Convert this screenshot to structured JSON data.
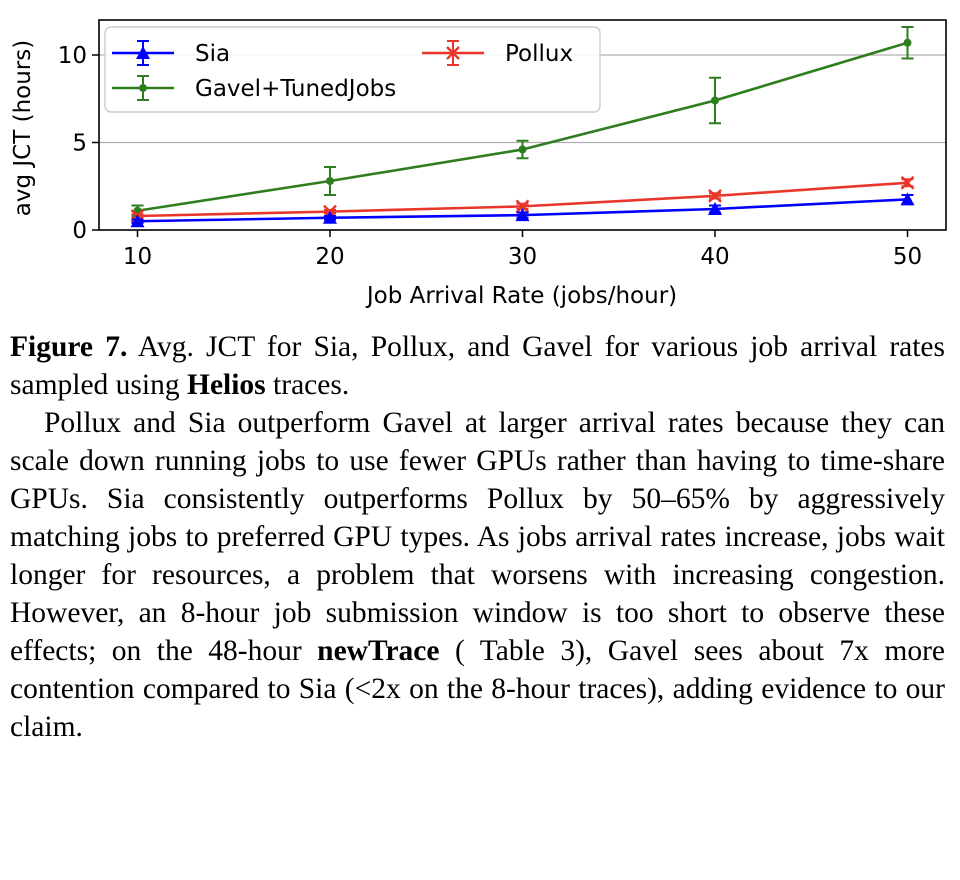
{
  "chart_data": {
    "type": "line",
    "xlabel": "Job Arrival Rate (jobs/hour)",
    "ylabel": "avg JCT (hours)",
    "x": [
      10,
      20,
      30,
      40,
      50
    ],
    "xlim": [
      8,
      52
    ],
    "ylim": [
      0,
      12
    ],
    "xticks": [
      10,
      20,
      30,
      40,
      50
    ],
    "yticks": [
      0,
      5,
      10
    ],
    "grid": "y-major",
    "legend_placement": "top-left",
    "series": [
      {
        "name": "Sia",
        "values": [
          0.5,
          0.7,
          0.85,
          1.2,
          1.75
        ],
        "errors": [
          0.1,
          0.1,
          0.15,
          0.2,
          0.25
        ],
        "color": "#0000ff",
        "marker": "triangle"
      },
      {
        "name": "Pollux",
        "values": [
          0.8,
          1.05,
          1.35,
          1.95,
          2.7
        ],
        "errors": [
          0.1,
          0.1,
          0.15,
          0.15,
          0.2
        ],
        "color": "#e8372a",
        "marker": "x"
      },
      {
        "name": "Gavel+TunedJobs",
        "values": [
          1.1,
          2.8,
          4.6,
          7.4,
          10.7
        ],
        "errors": [
          0.3,
          0.8,
          0.5,
          1.3,
          0.9
        ],
        "color": "#2e7d1e",
        "marker": "dot"
      }
    ]
  },
  "caption": {
    "label": "Figure 7.",
    "text_before": " Avg. JCT for Sia, Pollux, and Gavel for various job arrival rates sampled using ",
    "bold_term": "Helios",
    "text_after": " traces."
  },
  "paragraph": {
    "part1": "Pollux and Sia outperform Gavel at larger arrival rates be­cause they can scale down running jobs to use fewer GPUs rather than having to time-share GPUs. Sia consistently out­performs Pollux by 50–65% by aggressively matching jobs to preferred GPU types. As jobs arrival rates increase, jobs wait longer for resources, a problem that worsens with increasing congestion. However, an 8-hour job submission window is too short to observe these effects; on the 48-hour ",
    "bold_term": "newTrace",
    "part2": " ( Table 3), Gavel sees about 7x more contention compared to Sia (<2x on the 8-hour traces), adding evidence to our claim."
  }
}
